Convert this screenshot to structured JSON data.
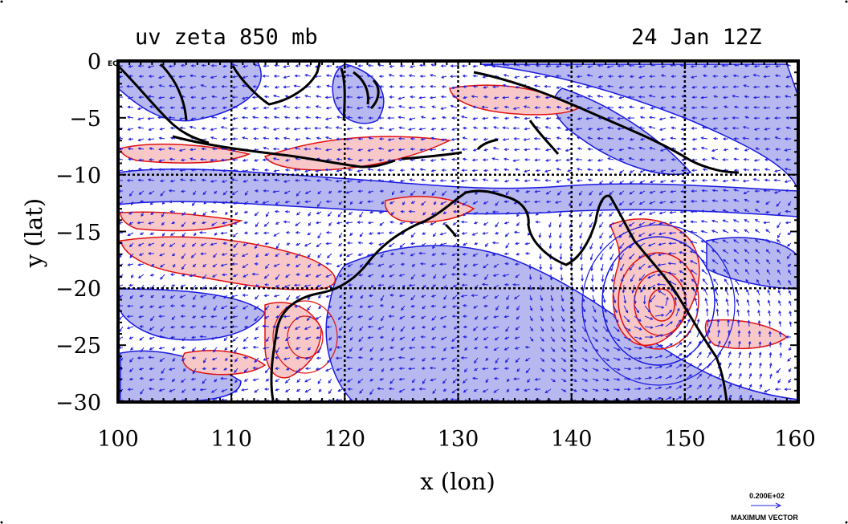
{
  "title_left": "uv zeta 850 mb",
  "title_right": "24 Jan 12Z",
  "eq_label": "EQ",
  "chart_data": {
    "type": "map",
    "xlabel": "x (lon)",
    "ylabel": "y (lat)",
    "xlim": [
      100,
      160
    ],
    "ylim": [
      -30,
      0
    ],
    "xticks": [
      "100",
      "110",
      "120",
      "130",
      "140",
      "150",
      "160"
    ],
    "yticks": [
      "0",
      "−5",
      "−10",
      "−15",
      "−20",
      "−25",
      "−30"
    ],
    "grid_lon": [
      110,
      120,
      130,
      140,
      150
    ],
    "grid_lat": [
      -10,
      -20
    ],
    "grid": true
  },
  "vector_legend": {
    "value": "0.200E+02",
    "label": "MAXIMUM VECTOR"
  },
  "colors": {
    "positive_fill": "#f8c8c8",
    "positive_line": "#e01010",
    "negative_fill": "#b8b8f0",
    "negative_line": "#1818e0",
    "coast": "#000000",
    "arrow": "#2020e0"
  }
}
